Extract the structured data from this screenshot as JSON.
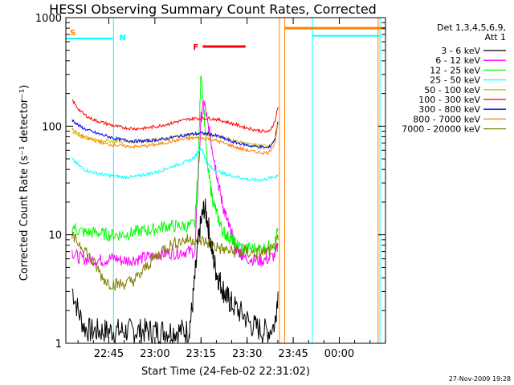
{
  "chart_data": {
    "type": "line",
    "title": "HESSI Observing Summary Count Rates, Corrected",
    "xlabel": "Start Time (24-Feb-02 22:31:02)",
    "ylabel": "Corrected Count Rate (s⁻¹ detector⁻¹)",
    "yscale": "log",
    "ylim": [
      1,
      1000
    ],
    "xlim_minutes": [
      0,
      104
    ],
    "xticks": [
      {
        "label": "22:45",
        "t": 13.97
      },
      {
        "label": "23:00",
        "t": 28.97
      },
      {
        "label": "23:15",
        "t": 43.97
      },
      {
        "label": "23:30",
        "t": 58.97
      },
      {
        "label": "23:45",
        "t": 73.97
      },
      {
        "label": "00:00",
        "t": 88.97
      }
    ],
    "yticks": [
      {
        "label": "1",
        "v": 1
      },
      {
        "label": "10",
        "v": 10
      },
      {
        "label": "100",
        "v": 100
      },
      {
        "label": "1000",
        "v": 1000
      }
    ],
    "legend_header": [
      "Det 1,3,4,5,6,9,",
      "Att 1"
    ],
    "legend_position": "right",
    "flags": [
      {
        "code": "S",
        "label": "S",
        "color": "#ff8000",
        "start": 0,
        "end": 15.5
      },
      {
        "code": "N",
        "label": "N",
        "color": "#00ffff",
        "start": 0,
        "end": 15.5
      },
      {
        "code": "F",
        "label": "F",
        "color": "#ff0000",
        "start": 44.5,
        "end": 58.5
      }
    ],
    "series": [
      {
        "name": "3 - 6 keV",
        "color": "#000000",
        "x": [
          2,
          4,
          6,
          8,
          10,
          12,
          14,
          16,
          18,
          20,
          22,
          24,
          26,
          28,
          30,
          32,
          34,
          36,
          38,
          40,
          41,
          42,
          43,
          44,
          45,
          46,
          47,
          48,
          49,
          50,
          51,
          52,
          53,
          54,
          56,
          58,
          60,
          62,
          64,
          66,
          68,
          69
        ],
        "y": [
          3.2,
          2.0,
          1.4,
          1.3,
          1.3,
          1.3,
          1.3,
          1.3,
          1.3,
          1.3,
          1.3,
          1.3,
          1.3,
          1.3,
          1.3,
          1.3,
          1.3,
          1.3,
          1.3,
          1.3,
          2.0,
          4.0,
          8.0,
          13,
          18,
          14,
          9,
          6,
          4.5,
          3.8,
          3.2,
          2.8,
          2.5,
          2.3,
          2.0,
          1.8,
          1.5,
          1.4,
          1.3,
          1.3,
          1.5,
          3.0
        ]
      },
      {
        "name": "6 - 12 keV",
        "color": "#ff00ff",
        "x": [
          2,
          4,
          6,
          8,
          10,
          12,
          14,
          16,
          18,
          20,
          22,
          24,
          26,
          28,
          30,
          32,
          34,
          36,
          38,
          40,
          42,
          43,
          44,
          45,
          46,
          47,
          48,
          49,
          50,
          51,
          52,
          53,
          54,
          55,
          56,
          57,
          58,
          60,
          62,
          64,
          66,
          68,
          69
        ],
        "y": [
          7.0,
          6.2,
          6.0,
          5.9,
          5.9,
          5.8,
          6.0,
          6.1,
          5.8,
          5.8,
          5.9,
          6.0,
          6.2,
          6.3,
          6.6,
          6.7,
          6.8,
          6.8,
          7.0,
          7.0,
          7.0,
          30,
          120,
          170,
          110,
          80,
          55,
          38,
          26,
          19,
          15,
          12,
          10,
          8.0,
          7.0,
          6.8,
          6.2,
          6.0,
          5.8,
          5.8,
          6.0,
          6.5,
          8.0
        ]
      },
      {
        "name": "12 - 25 keV",
        "color": "#00ff00",
        "x": [
          2,
          4,
          6,
          8,
          10,
          12,
          14,
          16,
          18,
          20,
          22,
          24,
          26,
          28,
          30,
          32,
          34,
          36,
          38,
          40,
          42,
          43,
          44,
          45,
          46,
          47,
          48,
          49,
          50,
          51,
          52,
          53,
          54,
          55,
          56,
          58,
          60,
          62,
          64,
          66,
          68,
          69
        ],
        "y": [
          12,
          11,
          10.5,
          10.5,
          10.5,
          10.2,
          10.0,
          10.0,
          10.0,
          10.2,
          10.5,
          10.8,
          11.0,
          11.0,
          11.5,
          12,
          12,
          12,
          12,
          12,
          12.5,
          40,
          330,
          130,
          45,
          28,
          20,
          16,
          13,
          11,
          10,
          9.5,
          9.0,
          8.5,
          8.0,
          7.5,
          7.5,
          7.5,
          7.5,
          7.8,
          8.5,
          11
        ]
      },
      {
        "name": "25 - 50 keV",
        "color": "#00ffff",
        "x": [
          2,
          4,
          6,
          8,
          10,
          12,
          14,
          16,
          18,
          20,
          22,
          24,
          26,
          28,
          30,
          32,
          34,
          36,
          38,
          40,
          42,
          43,
          44,
          45,
          46,
          48,
          50,
          52,
          54,
          56,
          58,
          60,
          62,
          64,
          66,
          68,
          69
        ],
        "y": [
          50,
          44,
          40,
          38,
          37,
          36,
          35,
          35,
          34,
          34,
          34,
          35,
          36,
          37,
          38,
          40,
          42,
          44,
          46,
          48,
          52,
          60,
          62,
          55,
          45,
          40,
          38,
          36,
          35,
          34,
          33,
          32,
          32,
          32,
          33,
          34,
          36
        ]
      },
      {
        "name": "50 - 100 keV",
        "color": "#c8c800",
        "x": [
          2,
          4,
          6,
          8,
          10,
          12,
          14,
          16,
          18,
          20,
          22,
          24,
          26,
          28,
          30,
          32,
          34,
          36,
          38,
          40,
          42,
          44,
          46,
          48,
          50,
          52,
          54,
          56,
          58,
          60,
          62,
          64,
          66,
          68,
          69
        ],
        "y": [
          88,
          82,
          78,
          76,
          75,
          74,
          73,
          73,
          72,
          72,
          72,
          73,
          73,
          74,
          75,
          76,
          78,
          80,
          82,
          83,
          84,
          85,
          84,
          82,
          80,
          78,
          75,
          72,
          70,
          68,
          67,
          66,
          66,
          75,
          110
        ]
      },
      {
        "name": "100 - 300 keV",
        "color": "#ff0000",
        "x": [
          2,
          4,
          6,
          8,
          10,
          12,
          14,
          16,
          18,
          20,
          22,
          24,
          26,
          28,
          30,
          32,
          34,
          36,
          38,
          40,
          42,
          44,
          46,
          48,
          50,
          52,
          54,
          56,
          58,
          60,
          62,
          64,
          66,
          68,
          69
        ],
        "y": [
          175,
          145,
          128,
          118,
          112,
          108,
          104,
          100,
          98,
          96,
          95,
          95,
          96,
          98,
          100,
          103,
          106,
          110,
          113,
          116,
          118,
          118,
          118,
          117,
          114,
          110,
          106,
          102,
          98,
          95,
          92,
          90,
          88,
          110,
          150
        ]
      },
      {
        "name": "300 - 800 keV",
        "color": "#0000ff",
        "x": [
          2,
          4,
          6,
          8,
          10,
          12,
          14,
          16,
          18,
          20,
          22,
          24,
          26,
          28,
          30,
          32,
          34,
          36,
          38,
          40,
          42,
          44,
          46,
          48,
          50,
          52,
          54,
          56,
          58,
          60,
          62,
          64,
          66,
          68,
          69
        ],
        "y": [
          115,
          102,
          95,
          90,
          86,
          83,
          80,
          77,
          75,
          74,
          73,
          73,
          73,
          74,
          75,
          76,
          78,
          80,
          82,
          84,
          85,
          86,
          85,
          83,
          80,
          76,
          72,
          70,
          68,
          66,
          65,
          64,
          63,
          75,
          110
        ]
      },
      {
        "name": "800 - 7000 keV",
        "color": "#ff8000",
        "x": [
          2,
          4,
          6,
          8,
          10,
          12,
          14,
          16,
          18,
          20,
          22,
          24,
          26,
          28,
          30,
          32,
          34,
          36,
          38,
          40,
          42,
          44,
          46,
          48,
          50,
          52,
          54,
          56,
          58,
          60,
          62,
          64,
          66,
          68,
          69
        ],
        "y": [
          95,
          85,
          80,
          76,
          73,
          70,
          68,
          67,
          66,
          65,
          65,
          65,
          66,
          67,
          68,
          70,
          72,
          74,
          76,
          77,
          78,
          78,
          77,
          75,
          72,
          69,
          66,
          63,
          61,
          59,
          58,
          57,
          57,
          70,
          105
        ]
      },
      {
        "name": "7000 - 20000 keV",
        "color": "#808000",
        "x": [
          2,
          4,
          6,
          8,
          10,
          12,
          14,
          16,
          18,
          20,
          22,
          24,
          26,
          28,
          30,
          32,
          34,
          36,
          38,
          40,
          42,
          44,
          46,
          48,
          50,
          52,
          54,
          56,
          58,
          60,
          62,
          64,
          66,
          68,
          69
        ],
        "y": [
          9.5,
          8.5,
          7.5,
          6.0,
          5.0,
          4.0,
          3.6,
          3.5,
          3.5,
          3.6,
          3.8,
          4.2,
          5.0,
          5.8,
          6.5,
          7.5,
          8.0,
          8.5,
          8.8,
          9.0,
          9.0,
          8.8,
          8.5,
          8.0,
          7.5,
          7.2,
          7.0,
          7.0,
          7.0,
          6.8,
          6.8,
          7.0,
          7.0,
          7.5,
          9.0
        ]
      }
    ],
    "gap_lines": [
      {
        "t": 0,
        "color": "#00ffff"
      },
      {
        "t": 15.5,
        "color": "#00ffff"
      },
      {
        "t": 69.5,
        "color": "#ff8000"
      },
      {
        "t": 71.2,
        "color": "#ff8000"
      },
      {
        "t": 80.2,
        "color": "#00ffff"
      },
      {
        "t": 101.6,
        "color": "#ff8000"
      },
      {
        "t": 102.2,
        "color": "#00ffff"
      }
    ],
    "saa_band": {
      "start": 71.2,
      "end": 104,
      "value": 800
    }
  },
  "footer_date": "27-Nov-2009 19:28"
}
